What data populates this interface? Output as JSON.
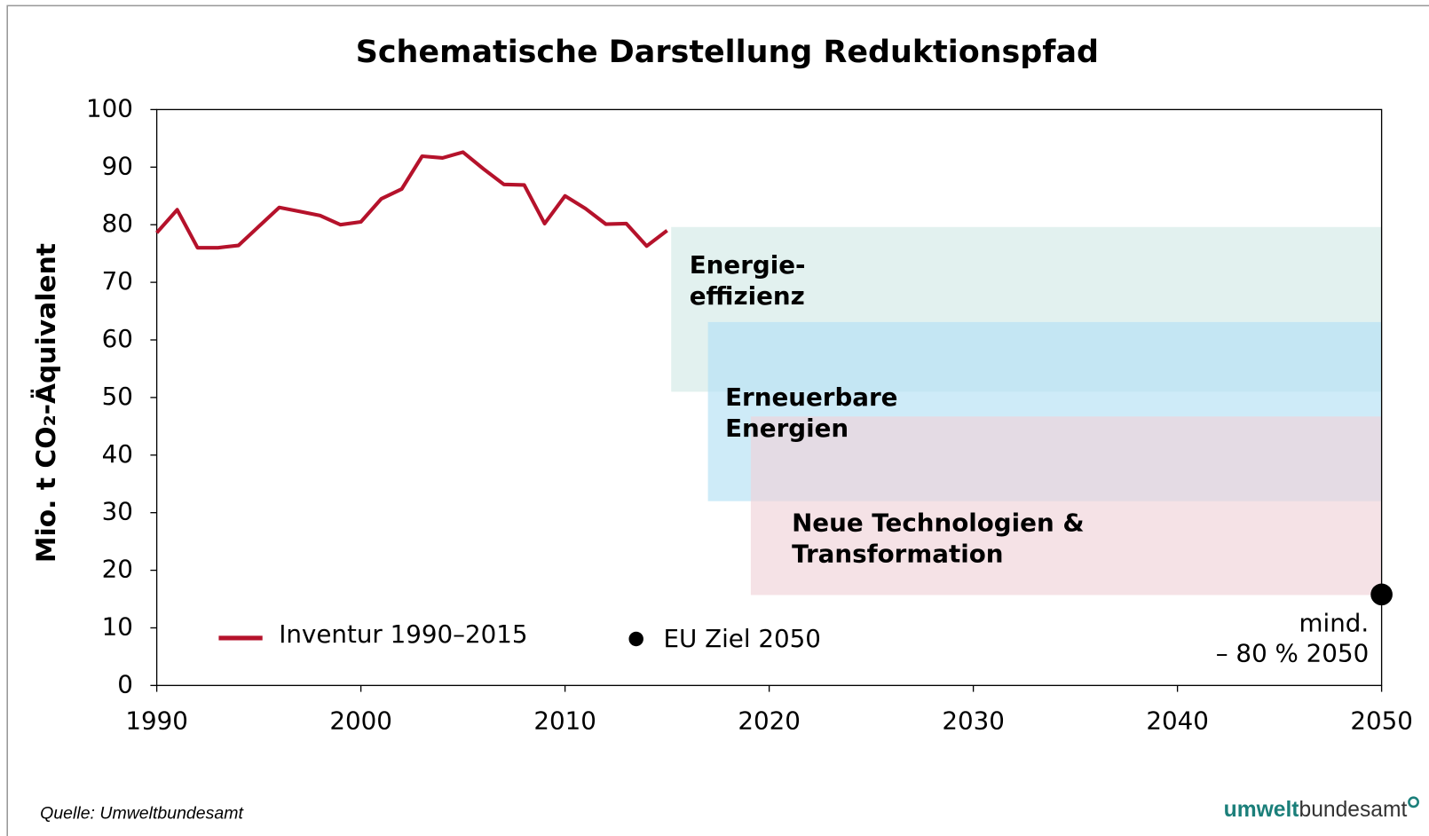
{
  "chart_data": {
    "type": "line",
    "title": "Schematische Darstellung Reduktionspfad",
    "y_label": "Mio. t CO₂-Äquivalent",
    "xlim": [
      1990,
      2050
    ],
    "xticks": [
      1990,
      2000,
      2010,
      2020,
      2030,
      2040,
      2050
    ],
    "ylim": [
      0,
      100
    ],
    "yticks": [
      0,
      10,
      20,
      30,
      40,
      50,
      60,
      70,
      80,
      90,
      100
    ],
    "series": [
      {
        "name": "Inventur 1990–2015",
        "color": "#b5122b",
        "x": [
          1990,
          1991,
          1992,
          1993,
          1994,
          1995,
          1996,
          1997,
          1998,
          1999,
          2000,
          2001,
          2002,
          2003,
          2004,
          2005,
          2006,
          2007,
          2008,
          2009,
          2010,
          2011,
          2012,
          2013,
          2014,
          2015
        ],
        "values": [
          78.6,
          82.6,
          76,
          76,
          76.4,
          79.7,
          83,
          82.3,
          81.6,
          80,
          80.5,
          84.5,
          86.2,
          91.9,
          91.6,
          92.6,
          89.7,
          87,
          86.9,
          80.2,
          85,
          82.8,
          80.1,
          80.2,
          76.3,
          79
        ]
      },
      {
        "name": "EU Ziel 2050",
        "color": "#000000",
        "x": [
          2050
        ],
        "values": [
          15.8
        ]
      }
    ],
    "bands": [
      {
        "lines": [
          "Energie-",
          "effizienz"
        ],
        "x": [
          2015.2,
          2050
        ],
        "y": [
          51,
          79.6
        ],
        "color": "#d3eae7"
      },
      {
        "lines": [
          "Erneuerbare",
          "Energien"
        ],
        "x": [
          2017,
          2050
        ],
        "y": [
          32,
          63.1
        ],
        "color": "#b3e0f5"
      },
      {
        "lines": [
          "Neue Technologien &",
          "Transformation"
        ],
        "x": [
          2019.1,
          2050
        ],
        "y": [
          15.7,
          46.7
        ],
        "color": "#f0d3d9"
      }
    ],
    "annotation": [
      "mind.",
      "– 80 % 2050"
    ],
    "source": "Quelle: Umweltbundesamt",
    "logo": [
      "umwelt",
      "bundesamt"
    ]
  }
}
